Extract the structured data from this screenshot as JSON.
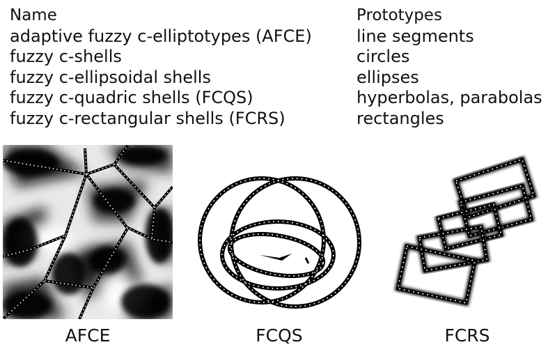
{
  "table": {
    "header": {
      "name": "Name",
      "prototypes": "Prototypes"
    },
    "rows": [
      {
        "name": "adaptive fuzzy c-elliptotypes (AFCE)",
        "prototypes": "line segments"
      },
      {
        "name": "fuzzy c-shells",
        "prototypes": "circles"
      },
      {
        "name": "fuzzy c-ellipsoidal shells",
        "prototypes": "ellipses"
      },
      {
        "name": "fuzzy c-quadric shells (FCQS)",
        "prototypes": "hyperbolas, parabolas"
      },
      {
        "name": "fuzzy c-rectangular shells (FCRS)",
        "prototypes": "rectangles"
      }
    ]
  },
  "figures": {
    "afce": {
      "caption": "AFCE"
    },
    "fcqs": {
      "caption": "FCQS"
    },
    "fcrs": {
      "caption": "FCRS"
    }
  },
  "colors": {
    "text": "#111111",
    "shape": "#000000",
    "dots": "#ffffff"
  }
}
